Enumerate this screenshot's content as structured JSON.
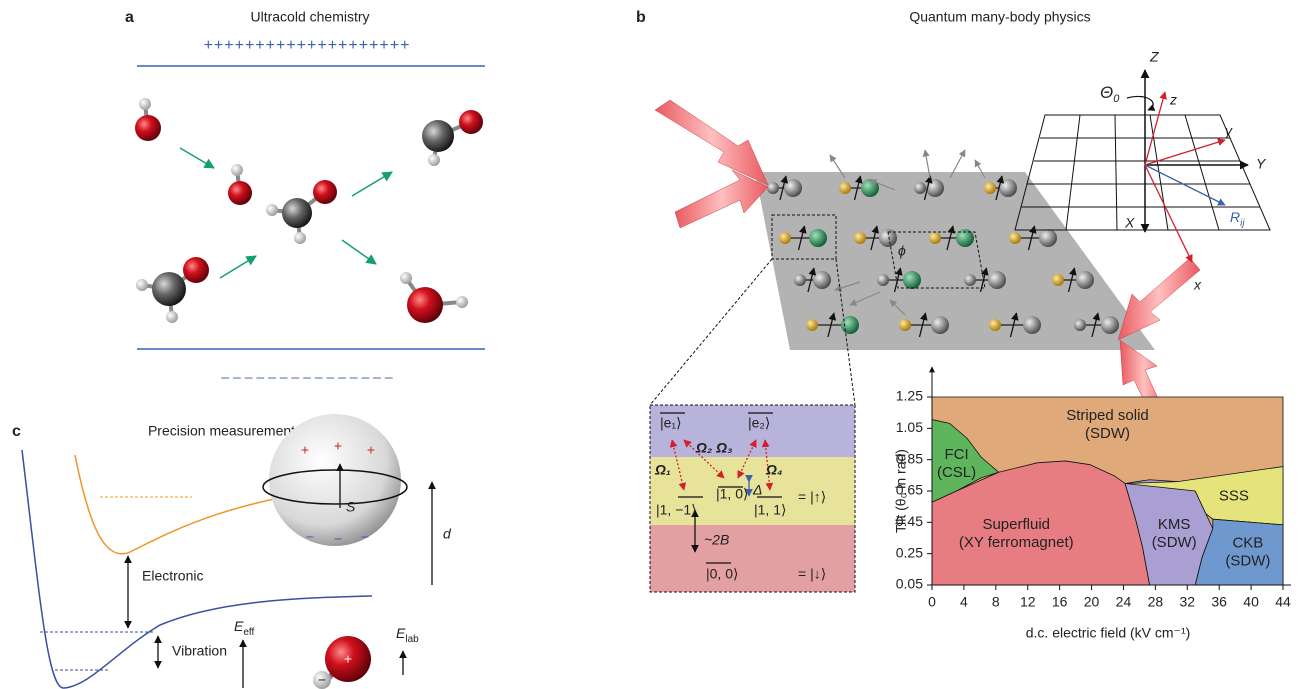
{
  "panel_a": {
    "label": "a",
    "title": "Ultracold chemistry",
    "plus_row": "++++++++++++++++++++",
    "minus_row": "– – – – – – – – – – – – – – –"
  },
  "panel_b": {
    "label": "b",
    "title": "Quantum many-body physics",
    "frame": {
      "Z": "Z",
      "theta": "Θ",
      "theta_sub": "0",
      "z": "z",
      "y": "y",
      "Y": "Y",
      "X": "X",
      "R": "R",
      "R_sub": "ij",
      "x": "x",
      "phi": "ϕ"
    },
    "levels": {
      "e1": "|e₁⟩",
      "e2": "|e₂⟩",
      "omega1": "Ω₁",
      "omega23": "Ω₂ Ω₃",
      "omega4": "Ω₄",
      "delta": "Δ",
      "m1": "|1, −1⟩",
      "s10": "|1, 0⟩",
      "s11": "|1, 1⟩",
      "twoB": "~2B",
      "s00": "|0, 0⟩",
      "up": "= |↑⟩",
      "down": "= |↓⟩"
    },
    "phase": {
      "ylabel": "Tilt (θ₀ in rad)",
      "xlabel": "d.c. electric field (kV cm⁻¹)",
      "xticks": [
        0,
        4,
        8,
        12,
        16,
        20,
        24,
        28,
        32,
        36,
        40,
        44
      ],
      "yticks": [
        0.05,
        0.25,
        0.45,
        0.65,
        0.85,
        1.05,
        1.25
      ],
      "regions": {
        "striped": [
          "Striped solid",
          "(SDW)"
        ],
        "fci": [
          "FCI",
          "(CSL)"
        ],
        "sss": [
          "SSS"
        ],
        "superfluid": [
          "Superfluid",
          "(XY ferromagnet)"
        ],
        "kms": [
          "KMS",
          "(SDW)"
        ],
        "ckb": [
          "CKB",
          "(SDW)"
        ]
      }
    }
  },
  "panel_c": {
    "label": "c",
    "title": "Precision measurements",
    "electronic": "Electronic",
    "vibration": "Vibration",
    "S": "S",
    "d": "d",
    "E": "E",
    "E_eff_sub": "eff",
    "E_lab_sub": "lab",
    "plus": "+",
    "minus": "−"
  }
}
